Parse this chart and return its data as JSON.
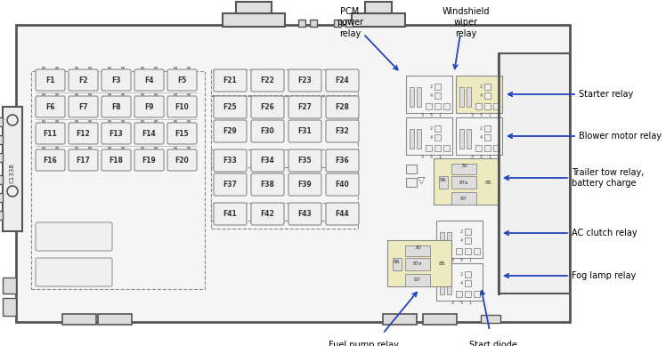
{
  "bg_color": "#ffffff",
  "fuse_fill": "#f0f0f0",
  "relay_fill": "#eeeac0",
  "relay_edge": "#888888",
  "fuse_edge": "#888888",
  "outer_fill": "#f8f8f8",
  "text_color": "#000000",
  "arrow_color": "#2244bb",
  "fuses_row1": [
    "F1",
    "F2",
    "F3",
    "F4",
    "F5"
  ],
  "fuses_row2": [
    "F6",
    "F7",
    "F8",
    "F9",
    "F10"
  ],
  "fuses_row3": [
    "F11",
    "F12",
    "F13",
    "F14",
    "F15"
  ],
  "fuses_row4": [
    "F16",
    "F17",
    "F18",
    "F19",
    "F20"
  ],
  "fuses_col2_row1": [
    "F21",
    "F22",
    "F23",
    "F24"
  ],
  "fuses_col2_row2a": [
    "F25",
    "F26",
    "F27",
    "F28"
  ],
  "fuses_col2_row2b": [
    "F29",
    "F30",
    "F31",
    "F32"
  ],
  "fuses_col2_row3a": [
    "F33",
    "F34",
    "F35",
    "F36"
  ],
  "fuses_col2_row3b": [
    "F37",
    "F38",
    "F39",
    "F40"
  ],
  "fuses_col2_row4": [
    "F41",
    "F42",
    "F43",
    "F44"
  ],
  "labels_right": [
    "Starter relay",
    "Blower motor relay",
    "Trailer tow relay,\nbattery charge",
    "AC clutch relay",
    "Fog lamp relay"
  ],
  "labels_bottom": [
    "Fuel pump relay",
    "Start diode"
  ],
  "c1338": "C1338"
}
